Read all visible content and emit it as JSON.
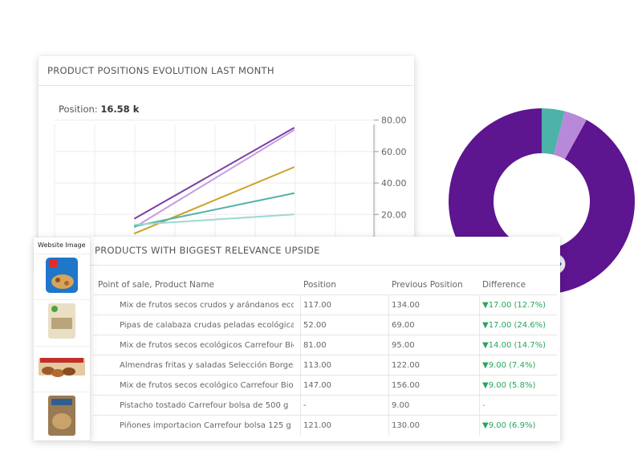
{
  "chart_card": {
    "title": "PRODUCT POSITIONS EVOLUTION LAST MONTH",
    "position_label": "Position:",
    "position_value": "16.58 k"
  },
  "chart_data": [
    {
      "type": "line",
      "y_ticks": [
        "80.00",
        "60.00",
        "40.00",
        "20.00"
      ],
      "ylim": [
        0,
        80
      ],
      "x": [
        0,
        1
      ],
      "series": [
        {
          "color": "#7b3fa5",
          "values": [
            17.5,
            75
          ]
        },
        {
          "color": "#c49be0",
          "values": [
            12,
            73.5
          ]
        },
        {
          "color": "#c9a227",
          "values": [
            8,
            50
          ]
        },
        {
          "color": "#52b2a8",
          "values": [
            12.5,
            33.5
          ]
        },
        {
          "color": "#9dd8d2",
          "values": [
            13.5,
            20
          ]
        }
      ],
      "grid": true
    },
    {
      "type": "pie",
      "donut": true,
      "values": [
        92,
        4,
        4
      ],
      "colors": [
        "#5e1590",
        "#b889d8",
        "#4db3a8"
      ]
    }
  ],
  "table_card": {
    "title": "PRODUCTS WITH BIGGEST RELEVANCE UPSIDE",
    "headers": [
      "Point of sale, Product Name",
      "Position",
      "Previous Position",
      "Difference"
    ],
    "rows": [
      {
        "name": "Mix de frutos secos crudos y arándanos ecológicos",
        "pos": "117.00",
        "prev": "134.00",
        "diff": "▼17.00 (12.7%)"
      },
      {
        "name": "Pipas de calabaza crudas peladas ecológicas",
        "pos": "52.00",
        "prev": "69.00",
        "diff": "▼17.00 (24.6%)"
      },
      {
        "name": "Mix de frutos secos ecológicos Carrefour Bio",
        "pos": "81.00",
        "prev": "95.00",
        "diff": "▼14.00 (14.7%)"
      },
      {
        "name": "Almendras fritas y saladas Selección Borges",
        "pos": "113.00",
        "prev": "122.00",
        "diff": "▼9.00 (7.4%)"
      },
      {
        "name": "Mix de frutos secos ecológico Carrefour Bio",
        "pos": "147.00",
        "prev": "156.00",
        "diff": "▼9.00 (5.8%)"
      },
      {
        "name": "Pistacho tostado Carrefour bolsa de 500 g",
        "pos": "-",
        "prev": "9.00",
        "diff": "-"
      },
      {
        "name": "Piñones importacion Carrefour bolsa 125 g",
        "pos": "121.00",
        "prev": "130.00",
        "diff": "▼9.00 (6.9%)"
      }
    ]
  },
  "image_column": {
    "header": "Website Image"
  }
}
